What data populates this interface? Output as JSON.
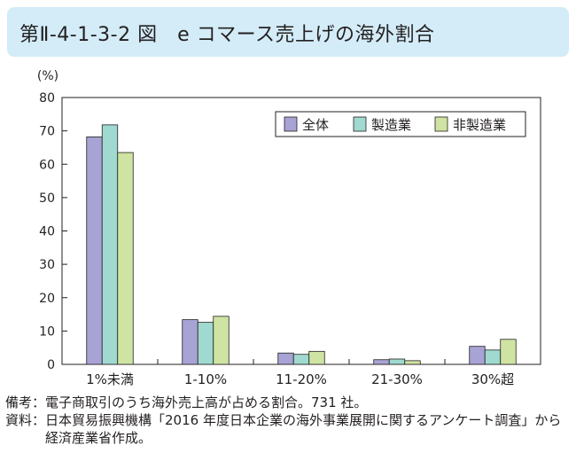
{
  "title": "第Ⅱ-4-1-3-2 図　e コマース売上げの海外割合",
  "colors": {
    "title_band": "#d3ecf8",
    "series": [
      "#a7a3d4",
      "#9fd9d0",
      "#cfe3a2"
    ]
  },
  "chart_data": {
    "type": "bar",
    "title": "",
    "ylabel": "(%)",
    "xlabel": "",
    "ylim": [
      0,
      80
    ],
    "yticks": [
      0,
      10,
      20,
      30,
      40,
      50,
      60,
      70,
      80
    ],
    "grid": false,
    "legend_position": "top-right",
    "categories": [
      "1%未満",
      "1-10%",
      "11-20%",
      "21-30%",
      "30%超"
    ],
    "series": [
      {
        "name": "全体",
        "values": [
          68.2,
          13.4,
          3.4,
          1.4,
          5.4
        ]
      },
      {
        "name": "製造業",
        "values": [
          71.8,
          12.6,
          3.0,
          1.6,
          4.3
        ]
      },
      {
        "name": "非製造業",
        "values": [
          63.5,
          14.4,
          3.9,
          1.1,
          7.5
        ]
      }
    ]
  },
  "notes": [
    {
      "head": "備考：",
      "text": "電子商取引のうち海外売上高が占める割合。731 社。"
    },
    {
      "head": "資料：",
      "text": "日本貿易振興機構「2016 年度日本企業の海外事業展開に関するアンケート調査」から経済産業省作成。"
    }
  ]
}
